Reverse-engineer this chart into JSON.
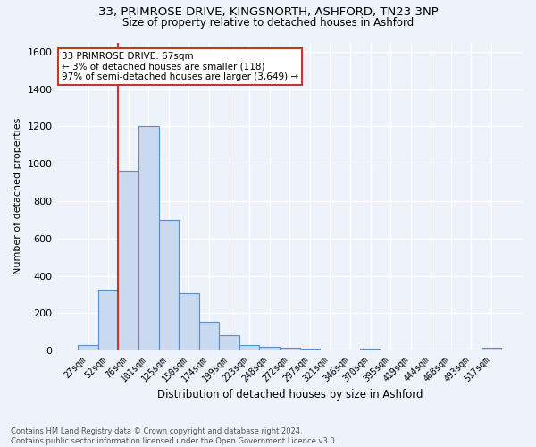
{
  "title_line1": "33, PRIMROSE DRIVE, KINGSNORTH, ASHFORD, TN23 3NP",
  "title_line2": "Size of property relative to detached houses in Ashford",
  "xlabel": "Distribution of detached houses by size in Ashford",
  "ylabel": "Number of detached properties",
  "footnote": "Contains HM Land Registry data © Crown copyright and database right 2024.\nContains public sector information licensed under the Open Government Licence v3.0.",
  "bar_labels": [
    "27sqm",
    "52sqm",
    "76sqm",
    "101sqm",
    "125sqm",
    "150sqm",
    "174sqm",
    "199sqm",
    "223sqm",
    "248sqm",
    "272sqm",
    "297sqm",
    "321sqm",
    "346sqm",
    "370sqm",
    "395sqm",
    "419sqm",
    "444sqm",
    "468sqm",
    "493sqm",
    "517sqm"
  ],
  "bar_values": [
    30,
    325,
    965,
    1200,
    700,
    305,
    155,
    80,
    28,
    18,
    15,
    10,
    0,
    0,
    12,
    0,
    0,
    0,
    0,
    0,
    14
  ],
  "bar_color": "#c9d9f0",
  "bar_edge_color": "#5b8fc9",
  "ylim": [
    0,
    1650
  ],
  "yticks": [
    0,
    200,
    400,
    600,
    800,
    1000,
    1200,
    1400,
    1600
  ],
  "vline_x": 1.5,
  "vline_color": "#c0392b",
  "annotation_title": "33 PRIMROSE DRIVE: 67sqm",
  "annotation_line1": "← 3% of detached houses are smaller (118)",
  "annotation_line2": "97% of semi-detached houses are larger (3,649) →",
  "annotation_box_color": "#ffffff",
  "annotation_box_edge_color": "#c0392b",
  "bg_color": "#eef2fa",
  "grid_color": "#ffffff"
}
